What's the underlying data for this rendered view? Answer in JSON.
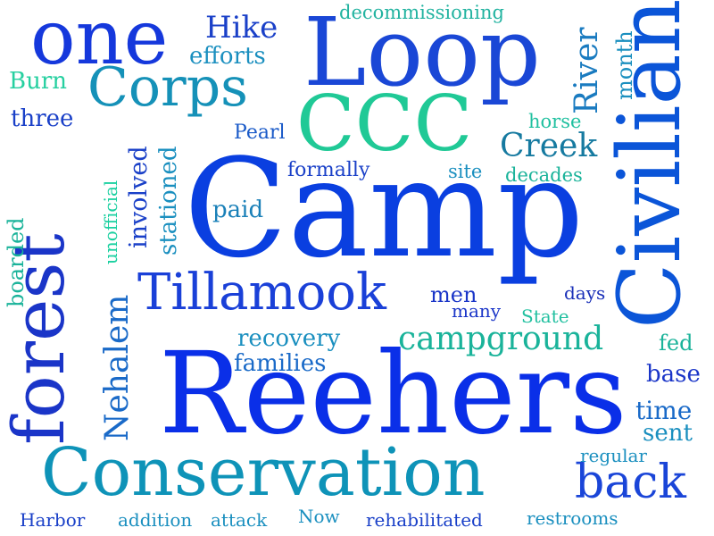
{
  "words": [
    {
      "text": "Camp",
      "color": "#0a3fe0"
    },
    {
      "text": "Reehers",
      "color": "#0a2fe8"
    },
    {
      "text": "Conservation",
      "color": "#0e93b8"
    },
    {
      "text": "Loop",
      "color": "#1a47d6"
    },
    {
      "text": "Civilian",
      "color": "#0b55d8"
    },
    {
      "text": "CCC",
      "color": "#20c996"
    },
    {
      "text": "forest",
      "color": "#1a35c8"
    },
    {
      "text": "one",
      "color": "#1538dc"
    },
    {
      "text": "Corps",
      "color": "#1591b8"
    },
    {
      "text": "Tillamook",
      "color": "#1a40d8"
    },
    {
      "text": "back",
      "color": "#1a45d8"
    },
    {
      "text": "campground",
      "color": "#1ab39a"
    },
    {
      "text": "Nehalem",
      "color": "#1a6ac8"
    },
    {
      "text": "River",
      "color": "#1a7bc0"
    },
    {
      "text": "Creek",
      "color": "#167aa0"
    },
    {
      "text": "Hike",
      "color": "#1a40c8"
    },
    {
      "text": "efforts",
      "color": "#1a8fbf"
    },
    {
      "text": "decommissioning",
      "color": "#22b3a0"
    },
    {
      "text": "month",
      "color": "#1a8fbf"
    },
    {
      "text": "Burn",
      "color": "#26d0a0"
    },
    {
      "text": "three",
      "color": "#1a40c8"
    },
    {
      "text": "Pearl",
      "color": "#1a5ac8"
    },
    {
      "text": "horse",
      "color": "#20c0a0"
    },
    {
      "text": "involved",
      "color": "#1a40c8"
    },
    {
      "text": "stationed",
      "color": "#1a8fbf"
    },
    {
      "text": "formally",
      "color": "#1a40c8"
    },
    {
      "text": "site",
      "color": "#1a8fbf"
    },
    {
      "text": "decades",
      "color": "#1ab39a"
    },
    {
      "text": "paid",
      "color": "#1a80b8"
    },
    {
      "text": "unofficial",
      "color": "#1ad0a0"
    },
    {
      "text": "boarded",
      "color": "#1ab39a"
    },
    {
      "text": "men",
      "color": "#1a35c8"
    },
    {
      "text": "days",
      "color": "#1a30b8"
    },
    {
      "text": "many",
      "color": "#1a35c8"
    },
    {
      "text": "State",
      "color": "#22c0a0"
    },
    {
      "text": "recovery",
      "color": "#1a8fbf"
    },
    {
      "text": "families",
      "color": "#1a6ac8"
    },
    {
      "text": "fed",
      "color": "#1ab39a"
    },
    {
      "text": "base",
      "color": "#1a35c8"
    },
    {
      "text": "time",
      "color": "#1a6ac8"
    },
    {
      "text": "sent",
      "color": "#1a8fbf"
    },
    {
      "text": "regular",
      "color": "#1a8fbf"
    },
    {
      "text": "Harbor",
      "color": "#1a40c8"
    },
    {
      "text": "addition",
      "color": "#1a8fbf"
    },
    {
      "text": "attack",
      "color": "#1a8fbf"
    },
    {
      "text": "Now",
      "color": "#1a8fbf"
    },
    {
      "text": "rehabilitated",
      "color": "#1a40c8"
    },
    {
      "text": "restrooms",
      "color": "#1a8fbf"
    }
  ]
}
